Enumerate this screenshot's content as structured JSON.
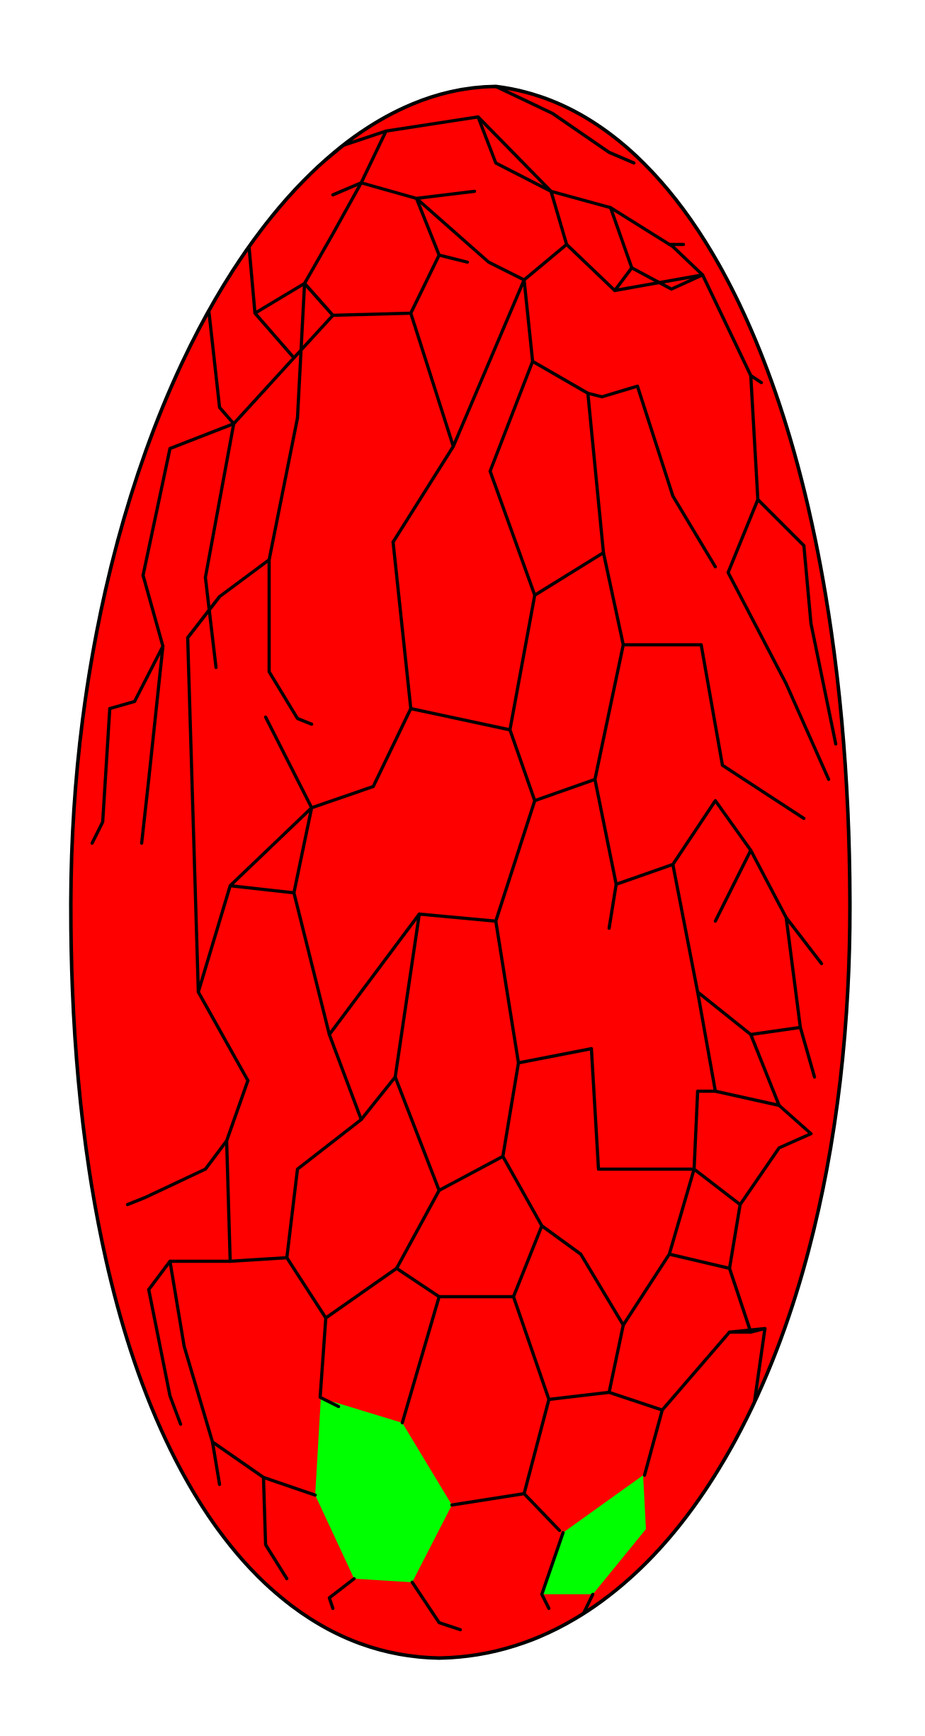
{
  "scene": {
    "subject": "cellular-ellipsoid",
    "colors": {
      "background": "#ffffff",
      "cell_fill": "#ff0000",
      "highlight_fill": "#00ff00",
      "edge": "#000000"
    },
    "highlighted_cell_count": 2
  }
}
